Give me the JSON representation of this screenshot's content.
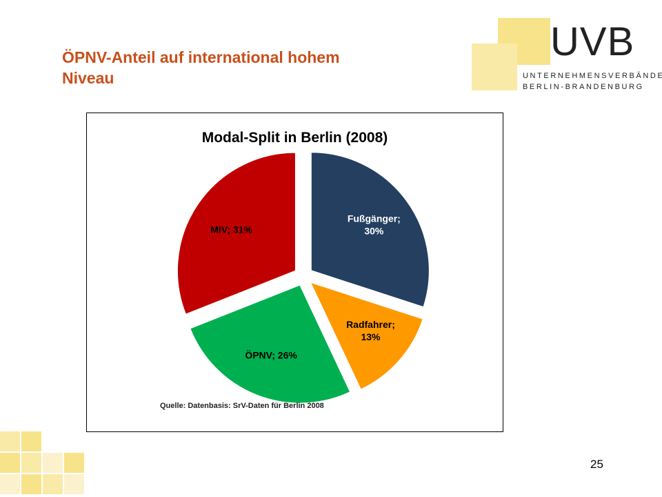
{
  "slide": {
    "title_line1": "ÖPNV-Anteil auf international hohem",
    "title_line2": "Niveau",
    "page_number": "25"
  },
  "logo": {
    "main": "UVB",
    "line1": "UNTERNEHMENSVERBÄNDE",
    "line2": "BERLIN-BRANDENBURG"
  },
  "colors": {
    "title": "#c8501c",
    "fussgaenger": "#243f60",
    "radfahrer": "#ff9900",
    "oepnv": "#00b050",
    "miv": "#c00000",
    "logo_square": "#f7e38a"
  },
  "chart_data": {
    "type": "pie",
    "title": "Modal-Split in Berlin (2008)",
    "slices": [
      {
        "label": "Fußgänger;",
        "label2": "30%",
        "value": 30,
        "color": "#243f60"
      },
      {
        "label": "Radfahrer;",
        "label2": "13%",
        "value": 13,
        "color": "#ff9900"
      },
      {
        "label": "ÖPNV; 26%",
        "label2": "",
        "value": 26,
        "color": "#00b050"
      },
      {
        "label": "MIV; 31%",
        "label2": "",
        "value": 31,
        "color": "#c00000"
      }
    ],
    "source": "Quelle: Datenbasis: SrV-Daten für Berlin 2008",
    "legend": "none"
  }
}
